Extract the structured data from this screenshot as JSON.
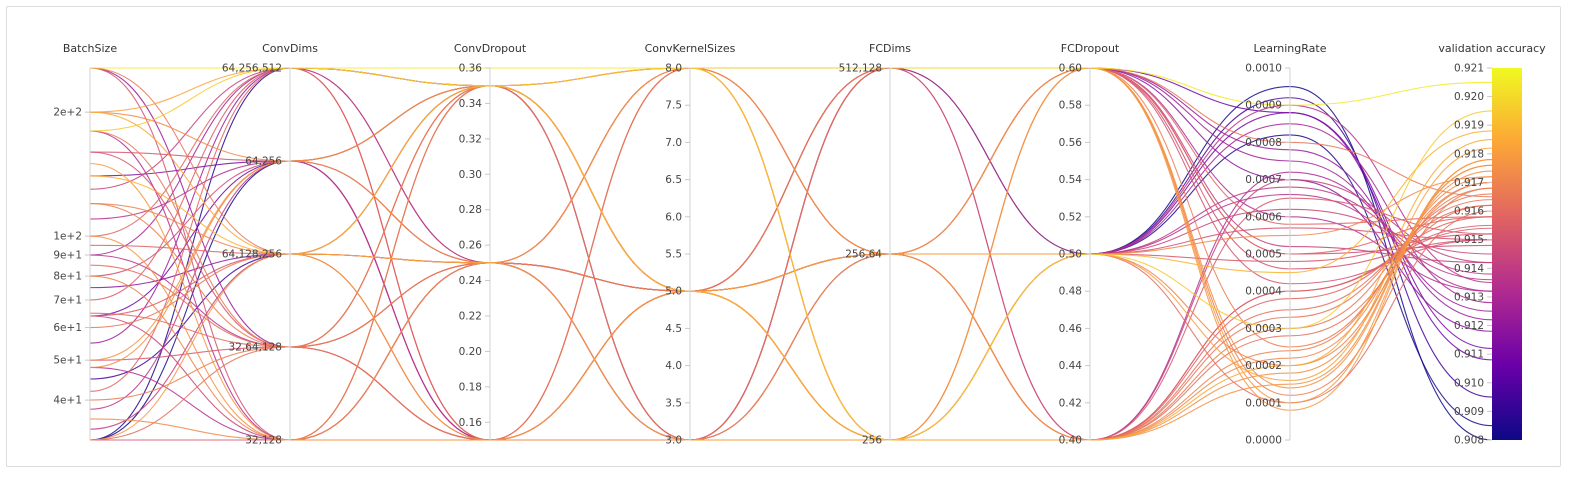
{
  "chart_data": {
    "type": "parallel_coordinates",
    "dimensions": [
      {
        "name": "BatchSize",
        "scale": "log",
        "range": [
          32,
          256
        ],
        "ticks": [
          "2e+2",
          "1e+2",
          "9e+1",
          "8e+1",
          "7e+1",
          "6e+1",
          "5e+1",
          "4e+1"
        ],
        "tick_values": [
          200,
          100,
          90,
          80,
          70,
          60,
          50,
          40
        ]
      },
      {
        "name": "ConvDims",
        "scale": "categorical",
        "categories": [
          "64,256,512",
          "64,256",
          "64,128,256",
          "32,64,128",
          "32,128"
        ]
      },
      {
        "name": "ConvDropout",
        "scale": "linear",
        "range": [
          0.15,
          0.36
        ],
        "ticks": [
          "0.36",
          "0.34",
          "0.32",
          "0.30",
          "0.28",
          "0.26",
          "0.24",
          "0.22",
          "0.20",
          "0.18",
          "0.16"
        ]
      },
      {
        "name": "ConvKernelSizes",
        "scale": "linear",
        "range": [
          3.0,
          8.0
        ],
        "ticks": [
          "8.0",
          "7.5",
          "7.0",
          "6.5",
          "6.0",
          "5.5",
          "5.0",
          "4.5",
          "4.0",
          "3.5",
          "3.0"
        ]
      },
      {
        "name": "FCDims",
        "scale": "categorical",
        "categories": [
          "512,128",
          "256,64",
          "256"
        ]
      },
      {
        "name": "FCDropout",
        "scale": "linear",
        "range": [
          0.4,
          0.6
        ],
        "ticks": [
          "0.60",
          "0.58",
          "0.56",
          "0.54",
          "0.52",
          "0.50",
          "0.48",
          "0.46",
          "0.44",
          "0.42",
          "0.40"
        ]
      },
      {
        "name": "LearningRate",
        "scale": "linear",
        "range": [
          0.0,
          0.001
        ],
        "ticks": [
          "0.0010",
          "0.0009",
          "0.0008",
          "0.0007",
          "0.0006",
          "0.0005",
          "0.0004",
          "0.0003",
          "0.0002",
          "0.0001",
          "0.0000"
        ]
      },
      {
        "name": "validation accuracy",
        "scale": "linear",
        "range": [
          0.908,
          0.921
        ],
        "ticks": [
          "0.921",
          "0.920",
          "0.919",
          "0.918",
          "0.917",
          "0.916",
          "0.915",
          "0.914",
          "0.913",
          "0.912",
          "0.911",
          "0.910",
          "0.909",
          "0.908"
        ]
      }
    ],
    "colorscale": {
      "name": "plasma",
      "min": 0.908,
      "max": 0.921,
      "colors": [
        "#0d0887",
        "#6a00a8",
        "#b12a90",
        "#e16462",
        "#fca636",
        "#f0f921"
      ]
    },
    "runs": [
      [
        256,
        "64,256,512",
        0.36,
        8,
        "512,128",
        0.6,
        0.0009,
        0.9205
      ],
      [
        200,
        "64,256",
        0.35,
        5,
        "256,64",
        0.5,
        0.00055,
        0.9172
      ],
      [
        200,
        "64,128,256",
        0.25,
        3,
        "256",
        0.4,
        0.0002,
        0.9185
      ],
      [
        180,
        "32,64,128",
        0.15,
        5,
        "256,64",
        0.6,
        0.0008,
        0.9165
      ],
      [
        180,
        "64,256,512",
        0.35,
        8,
        "256",
        0.5,
        0.0003,
        0.9195
      ],
      [
        160,
        "64,256",
        0.25,
        5,
        "512,128",
        0.4,
        0.00065,
        0.9152
      ],
      [
        150,
        "32,128",
        0.15,
        3,
        "256,64",
        0.6,
        0.0001,
        0.9178
      ],
      [
        140,
        "64,128,256",
        0.35,
        5,
        "256",
        0.5,
        0.00045,
        0.9188
      ],
      [
        130,
        "64,256,512",
        0.25,
        8,
        "256,64",
        0.4,
        0.0007,
        0.9142
      ],
      [
        120,
        "32,64,128",
        0.35,
        3,
        "512,128",
        0.6,
        0.00025,
        0.9168
      ],
      [
        110,
        "64,256",
        0.15,
        5,
        "256",
        0.5,
        0.0009,
        0.9135
      ],
      [
        100,
        "32,128",
        0.25,
        8,
        "256,64",
        0.4,
        0.00015,
        0.9176
      ],
      [
        95,
        "64,128,256",
        0.15,
        5,
        "512,128",
        0.6,
        0.00058,
        0.9158
      ],
      [
        90,
        "64,256,512",
        0.35,
        3,
        "256",
        0.5,
        0.00085,
        0.9128
      ],
      [
        85,
        "32,64,128",
        0.25,
        5,
        "256,64",
        0.4,
        0.00035,
        0.9162
      ],
      [
        80,
        "64,256",
        0.35,
        8,
        "512,128",
        0.6,
        0.0005,
        0.9148
      ],
      [
        80,
        "32,128",
        0.15,
        5,
        "256",
        0.5,
        0.0002,
        0.917
      ],
      [
        75,
        "64,128,256",
        0.25,
        3,
        "256,64",
        0.6,
        0.0007,
        0.9118
      ],
      [
        70,
        "64,256,512",
        0.15,
        5,
        "256",
        0.4,
        0.0004,
        0.9155
      ],
      [
        65,
        "32,64,128",
        0.35,
        8,
        "256,64",
        0.5,
        0.0001,
        0.916
      ],
      [
        64,
        "64,256",
        0.25,
        5,
        "512,128",
        0.6,
        0.00088,
        0.9108
      ],
      [
        64,
        "32,128",
        0.35,
        3,
        "256",
        0.5,
        0.00062,
        0.9145
      ],
      [
        60,
        "64,128,256",
        0.15,
        8,
        "256,64",
        0.4,
        0.0003,
        0.9166
      ],
      [
        55,
        "64,256,512",
        0.25,
        5,
        "512,128",
        0.6,
        0.00075,
        0.9125
      ],
      [
        50,
        "32,64,128",
        0.15,
        3,
        "256,64",
        0.5,
        0.00048,
        0.9152
      ],
      [
        48,
        "64,256",
        0.35,
        5,
        "256",
        0.4,
        0.00018,
        0.9174
      ],
      [
        48,
        "32,128",
        0.25,
        8,
        "512,128",
        0.6,
        0.0006,
        0.9132
      ],
      [
        45,
        "64,128,256",
        0.35,
        5,
        "256,64",
        0.5,
        0.00092,
        0.9095
      ],
      [
        42,
        "64,256,512",
        0.15,
        3,
        "256",
        0.4,
        0.00038,
        0.9158
      ],
      [
        40,
        "32,64,128",
        0.25,
        5,
        "512,128",
        0.6,
        0.00012,
        0.9168
      ],
      [
        38,
        "64,256",
        0.15,
        8,
        "256,64",
        0.5,
        0.00068,
        0.9138
      ],
      [
        36,
        "32,128",
        0.35,
        5,
        "256",
        0.4,
        0.00022,
        0.9172
      ],
      [
        34,
        "64,128,256",
        0.25,
        3,
        "512,128",
        0.6,
        0.00052,
        0.9142
      ],
      [
        32,
        "64,256,512",
        0.35,
        5,
        "256,64",
        0.5,
        0.00082,
        0.9085
      ],
      [
        32,
        "32,64,128",
        0.15,
        8,
        "256",
        0.4,
        0.00028,
        0.9162
      ],
      [
        32,
        "32,128",
        0.25,
        5,
        "256,64",
        0.6,
        0.00042,
        0.915
      ],
      [
        32,
        "64,256",
        0.35,
        3,
        "512,128",
        0.5,
        0.00095,
        0.908
      ],
      [
        32,
        "64,128,256",
        0.15,
        5,
        "256",
        0.6,
        8e-05,
        0.9178
      ],
      [
        256,
        "32,128",
        0.35,
        5,
        "256,64",
        0.5,
        0.00057,
        0.915
      ],
      [
        256,
        "64,128,256",
        0.25,
        8,
        "256",
        0.4,
        0.00033,
        0.9164
      ],
      [
        256,
        "32,64,128",
        0.15,
        3,
        "512,128",
        0.6,
        0.00078,
        0.9122
      ],
      [
        200,
        "64,256,512",
        0.35,
        5,
        "256,64",
        0.5,
        0.00016,
        0.9182
      ],
      [
        180,
        "32,128",
        0.25,
        8,
        "512,128",
        0.4,
        0.00072,
        0.9132
      ],
      [
        160,
        "32,64,128",
        0.35,
        5,
        "256",
        0.6,
        0.00046,
        0.915
      ],
      [
        140,
        "64,256",
        0.15,
        3,
        "256,64",
        0.5,
        0.00088,
        0.9112
      ],
      [
        120,
        "64,128,256",
        0.35,
        8,
        "256",
        0.4,
        0.00024,
        0.917
      ],
      [
        100,
        "64,256,512",
        0.15,
        5,
        "256,64",
        0.6,
        0.0005,
        0.9158
      ],
      [
        90,
        "32,64,128",
        0.25,
        3,
        "512,128",
        0.5,
        0.00066,
        0.9136
      ],
      [
        64,
        "64,128,256",
        0.35,
        5,
        "256,64",
        0.4,
        0.0004,
        0.9154
      ],
      [
        50,
        "64,256",
        0.25,
        8,
        "256",
        0.6,
        0.00014,
        0.9176
      ]
    ]
  }
}
